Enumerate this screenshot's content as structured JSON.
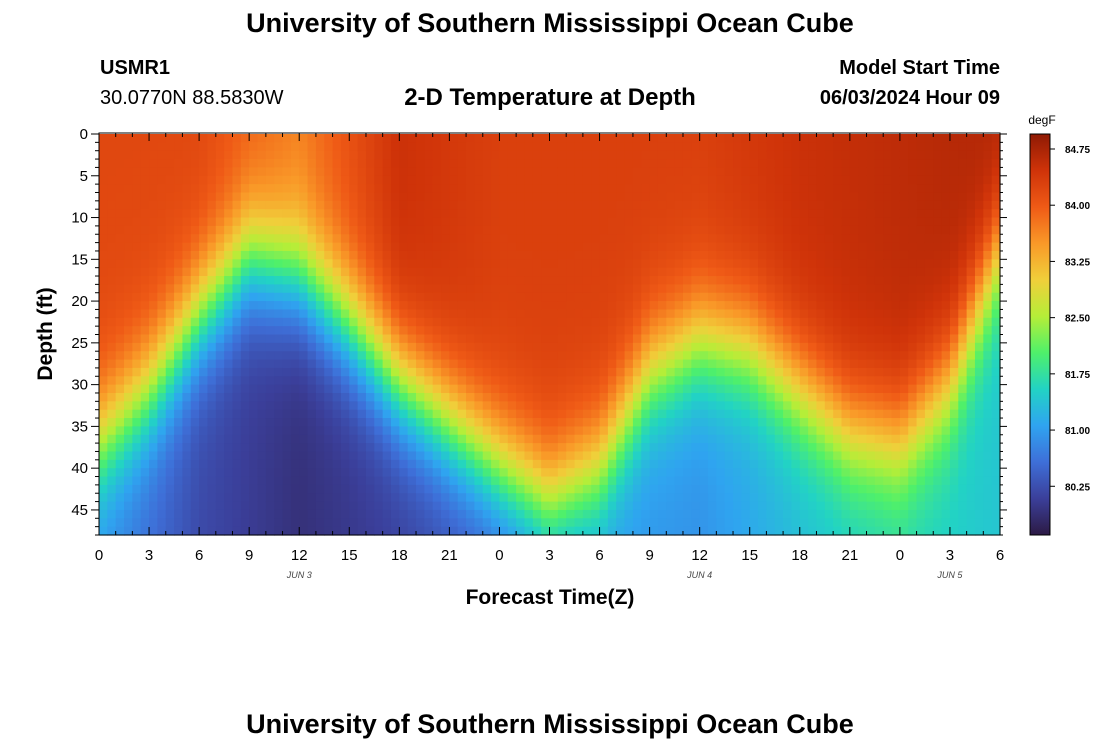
{
  "title": "University of Southern Mississippi Ocean Cube",
  "footer_title": "University of Southern Mississippi Ocean Cube",
  "station": {
    "id": "USMR1",
    "coords": "30.0770N  88.5830W"
  },
  "subtitle": "2-D Temperature at Depth",
  "model": {
    "label": "Model Start Time",
    "value": "06/03/2024 Hour 09"
  },
  "chart_data": {
    "type": "heatmap",
    "title": "2-D Temperature at Depth",
    "xlabel": "Forecast Time(Z)",
    "ylabel": "Depth (ft)",
    "x_range_hours": [
      0,
      54
    ],
    "y_range_ft": [
      0,
      48
    ],
    "x_ticks": [
      {
        "hour": 0,
        "label": "0"
      },
      {
        "hour": 3,
        "label": "3"
      },
      {
        "hour": 6,
        "label": "6"
      },
      {
        "hour": 9,
        "label": "9"
      },
      {
        "hour": 12,
        "label": "12"
      },
      {
        "hour": 15,
        "label": "15"
      },
      {
        "hour": 18,
        "label": "18"
      },
      {
        "hour": 21,
        "label": "21"
      },
      {
        "hour": 24,
        "label": "0"
      },
      {
        "hour": 27,
        "label": "3"
      },
      {
        "hour": 30,
        "label": "6"
      },
      {
        "hour": 33,
        "label": "9"
      },
      {
        "hour": 36,
        "label": "12"
      },
      {
        "hour": 39,
        "label": "15"
      },
      {
        "hour": 42,
        "label": "18"
      },
      {
        "hour": 45,
        "label": "21"
      },
      {
        "hour": 48,
        "label": "0"
      },
      {
        "hour": 51,
        "label": "3"
      },
      {
        "hour": 54,
        "label": "6"
      }
    ],
    "date_labels": [
      {
        "hour": 12,
        "label": "JUN 3"
      },
      {
        "hour": 36,
        "label": "JUN 4"
      },
      {
        "hour": 51,
        "label": "JUN 5"
      }
    ],
    "y_ticks": [
      0,
      5,
      10,
      15,
      20,
      25,
      30,
      35,
      40,
      45
    ],
    "colorbar": {
      "unit": "degF",
      "min": 79.6,
      "max": 84.95,
      "ticks": [
        "84.75",
        "84.00",
        "83.25",
        "82.50",
        "81.75",
        "81.00",
        "80.25"
      ],
      "colors": [
        "#2c1a44",
        "#3b3f9a",
        "#3e6fd8",
        "#2fa4f0",
        "#22d3c4",
        "#4ff06a",
        "#b5ee38",
        "#f0cf3a",
        "#f99928",
        "#ef5a16",
        "#cf3309",
        "#8f1a04"
      ]
    },
    "thermocline_depth_ft": [
      {
        "hour": 0,
        "depth": 37
      },
      {
        "hour": 3,
        "depth": 31
      },
      {
        "hour": 6,
        "depth": 22
      },
      {
        "hour": 9,
        "depth": 15
      },
      {
        "hour": 12,
        "depth": 17
      },
      {
        "hour": 15,
        "depth": 23
      },
      {
        "hour": 18,
        "depth": 30
      },
      {
        "hour": 21,
        "depth": 35
      },
      {
        "hour": 24,
        "depth": 40
      },
      {
        "hour": 27,
        "depth": 44
      },
      {
        "hour": 30,
        "depth": 40
      },
      {
        "hour": 33,
        "depth": 29
      },
      {
        "hour": 36,
        "depth": 25
      },
      {
        "hour": 39,
        "depth": 26
      },
      {
        "hour": 42,
        "depth": 31
      },
      {
        "hour": 45,
        "depth": 36
      },
      {
        "hour": 48,
        "depth": 37
      },
      {
        "hour": 51,
        "depth": 30
      },
      {
        "hour": 54,
        "depth": 14
      }
    ],
    "surface_temp_degF": [
      {
        "hour": 0,
        "value": 84.2
      },
      {
        "hour": 6,
        "value": 84.2
      },
      {
        "hour": 12,
        "value": 83.7
      },
      {
        "hour": 18,
        "value": 84.5
      },
      {
        "hour": 24,
        "value": 84.3
      },
      {
        "hour": 30,
        "value": 84.3
      },
      {
        "hour": 36,
        "value": 84.3
      },
      {
        "hour": 42,
        "value": 84.5
      },
      {
        "hour": 48,
        "value": 84.6
      },
      {
        "hour": 54,
        "value": 84.7
      }
    ],
    "bottom_temp_degF": [
      {
        "hour": 0,
        "value": 80.9
      },
      {
        "hour": 6,
        "value": 80.2
      },
      {
        "hour": 12,
        "value": 79.9
      },
      {
        "hour": 18,
        "value": 80.1
      },
      {
        "hour": 24,
        "value": 80.4
      },
      {
        "hour": 30,
        "value": 81.0
      },
      {
        "hour": 36,
        "value": 80.9
      },
      {
        "hour": 42,
        "value": 81.3
      },
      {
        "hour": 48,
        "value": 81.6
      },
      {
        "hour": 54,
        "value": 81.4
      }
    ]
  }
}
